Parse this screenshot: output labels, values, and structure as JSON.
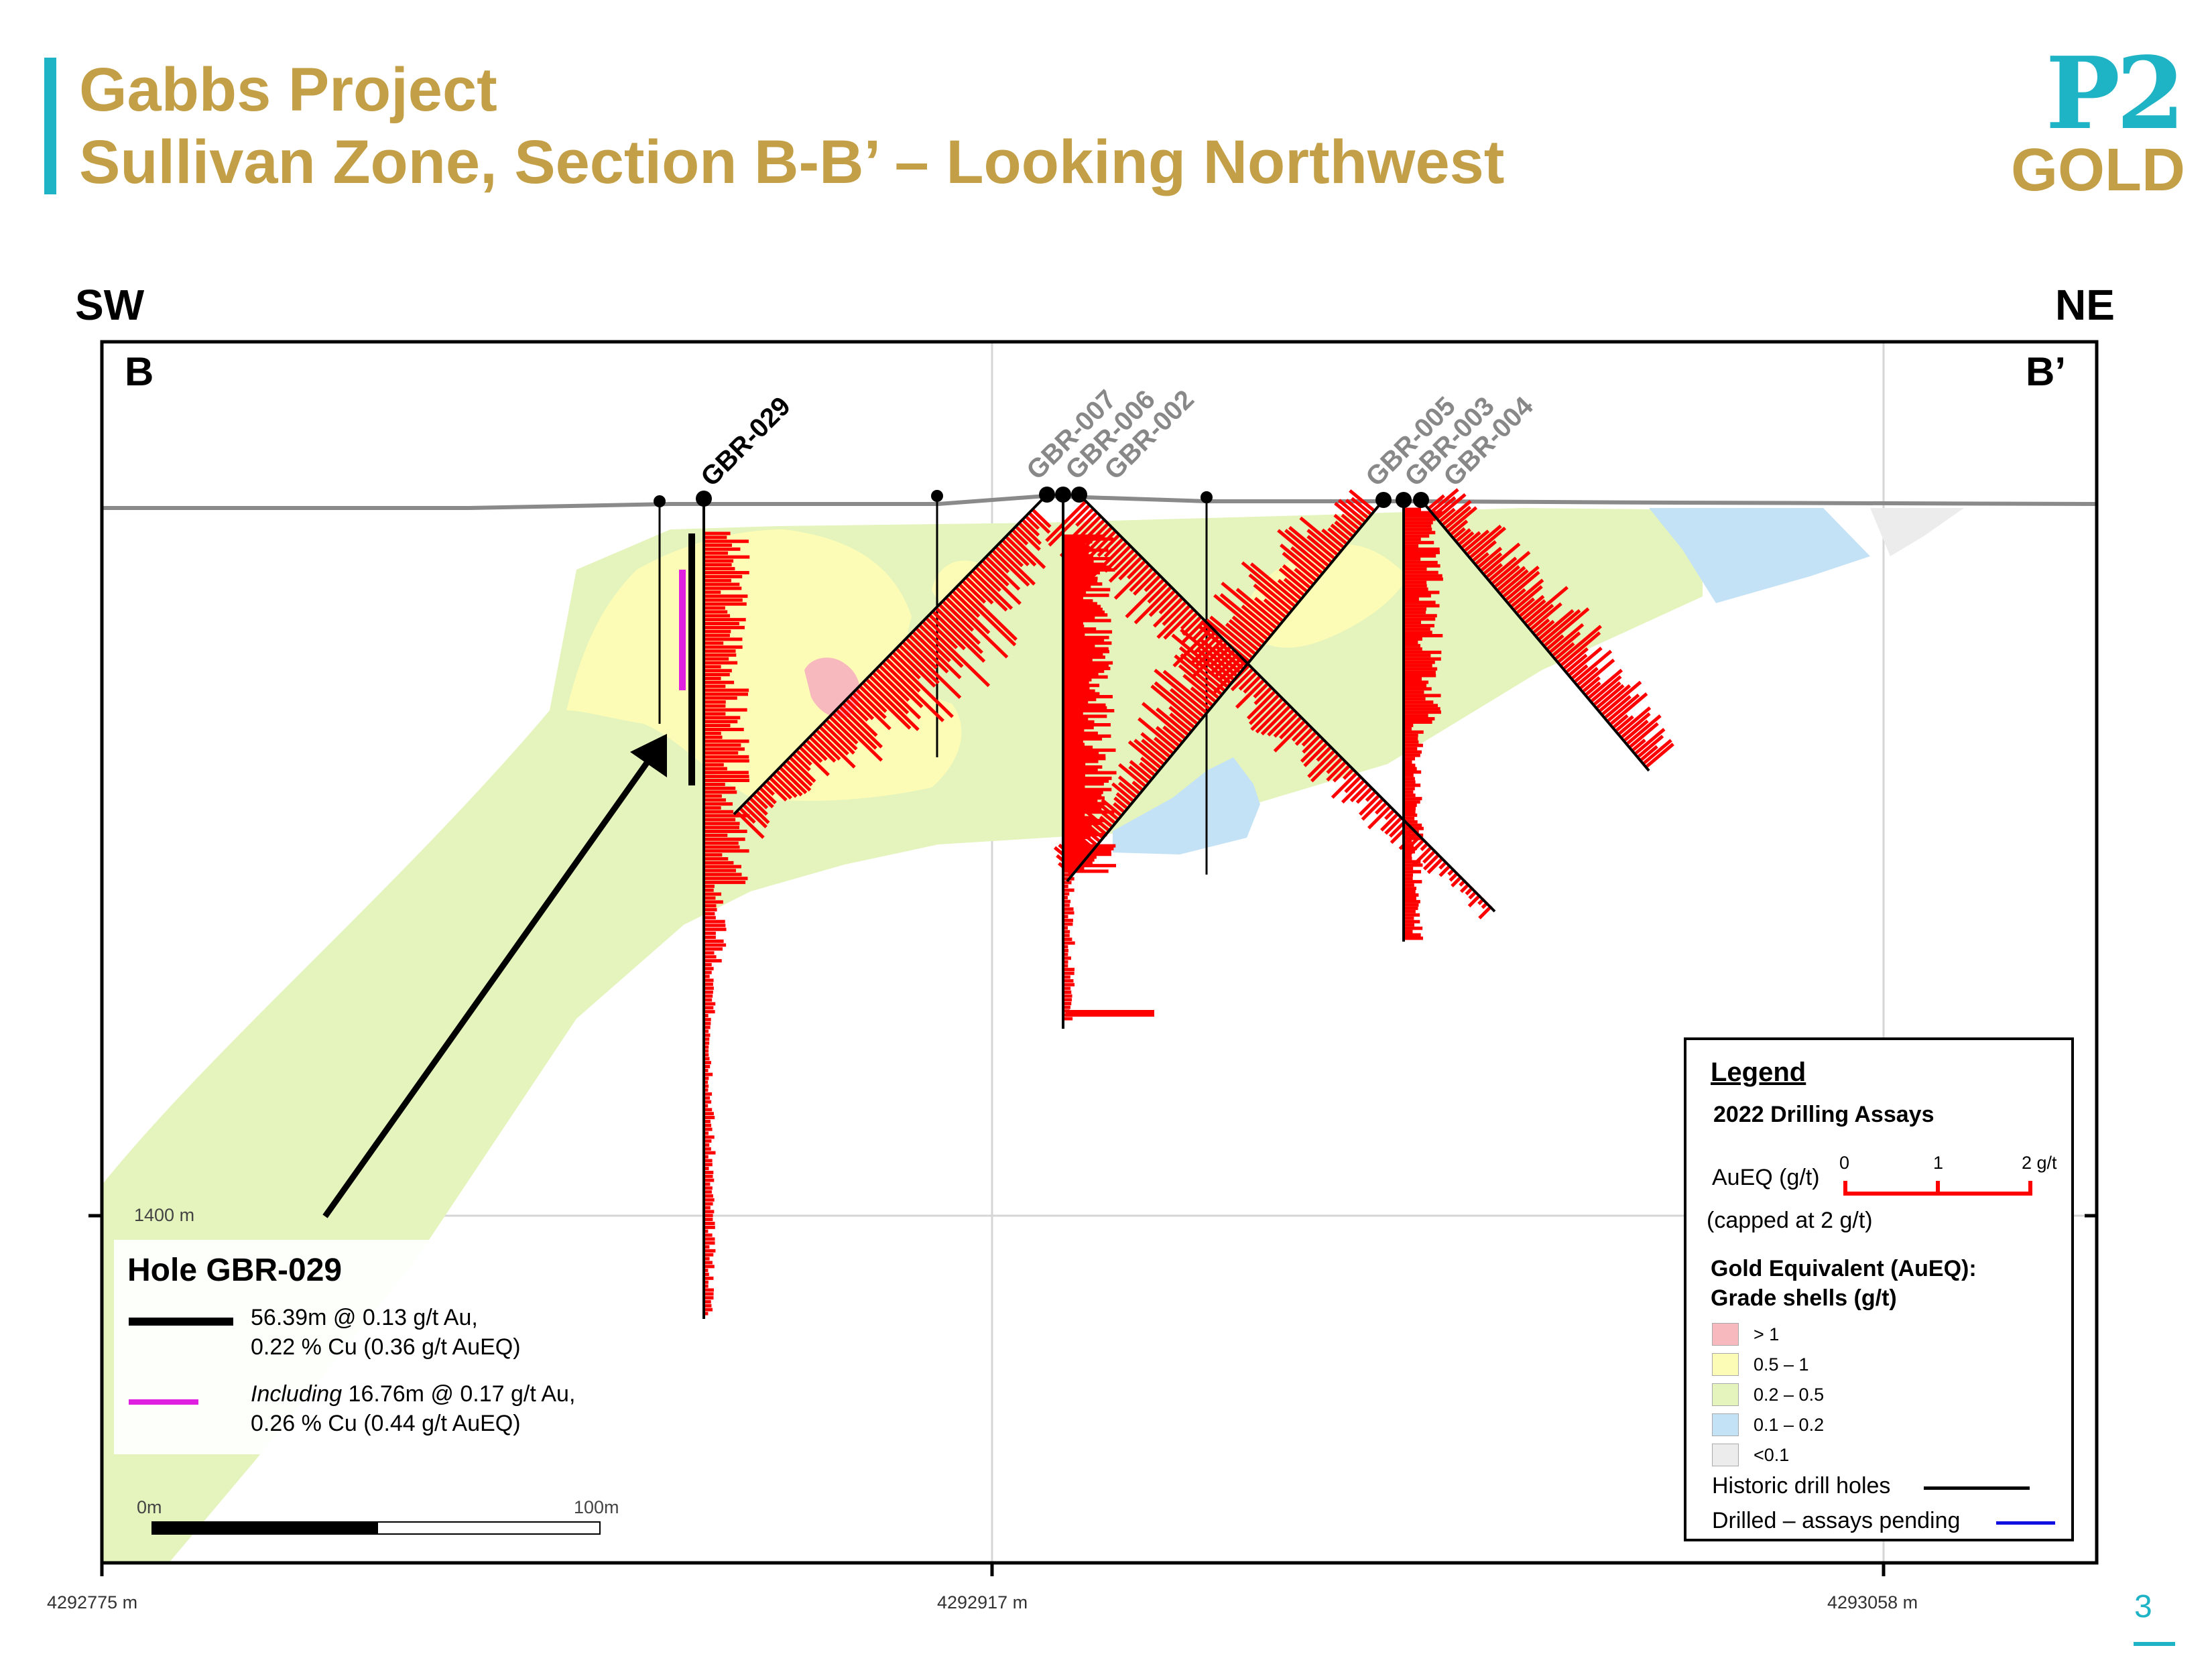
{
  "header": {
    "title_line1": "Gabbs Project",
    "title_line2": "Sullivan Zone, Section B-B’ – Looking Northwest",
    "logo_top": "P2",
    "logo_bottom": "GOLD"
  },
  "section": {
    "left_direction": "SW",
    "right_direction": "NE",
    "left_label": "B",
    "right_label": "B’",
    "elevation_label": "1400 m",
    "coordinates": [
      "4292775 m",
      "4292917 m",
      "4293058 m"
    ]
  },
  "drill_holes": {
    "highlight": "GBR-029",
    "group_a": [
      "GBR-007",
      "GBR-006",
      "GBR-002"
    ],
    "group_b": [
      "GBR-005",
      "GBR-003",
      "GBR-004"
    ]
  },
  "hole_box": {
    "title": "Hole GBR-029",
    "intercept1_line1": "56.39m @  0.13 g/t Au,",
    "intercept1_line2": "0.22 % Cu (0.36 g/t AuEQ)",
    "intercept2_italic": "Including",
    "intercept2_line1": " 16.76m @ 0.17 g/t Au,",
    "intercept2_line2": "0.26 % Cu (0.44 g/t AuEQ)"
  },
  "scale_bar": {
    "start": "0m",
    "end": "100m"
  },
  "legend": {
    "title": "Legend",
    "assays_title": "2022 Drilling Assays",
    "aueq_label": "AuEQ (g/t)",
    "scale_ticks": [
      "0",
      "1",
      "2 g/t"
    ],
    "capped": "(capped at 2 g/t)",
    "shells_title_line1": "Gold Equivalent (AuEQ):",
    "shells_title_line2": "Grade shells (g/t)",
    "shells": [
      {
        "label": "> 1",
        "color": "#f7b9bd"
      },
      {
        "label": "0.5 – 1",
        "color": "#fcfcb6"
      },
      {
        "label": "0.2 – 0.5",
        "color": "#e4f4bc"
      },
      {
        "label": "0.1 – 0.2",
        "color": "#c4e2f6"
      },
      {
        "label": "<0.1",
        "color": "#ececec"
      }
    ],
    "historic": "Historic drill holes",
    "pending": "Drilled – assays pending"
  },
  "colors": {
    "accent": "#1fb3c6",
    "gold": "#c3a047",
    "assay": "#ff0000",
    "pending": "#1010e0",
    "intercept_pink": "#e020e0"
  },
  "page_number": "3"
}
